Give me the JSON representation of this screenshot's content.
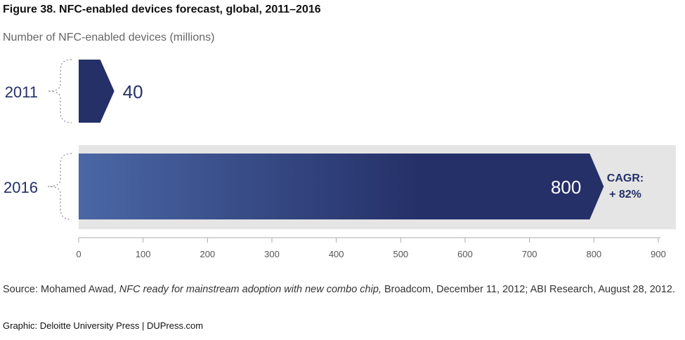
{
  "title": "Figure 38. NFC-enabled devices forecast, global, 2011–2016",
  "subtitle": "Number of NFC-enabled devices (millions)",
  "chart_data": {
    "type": "bar",
    "orientation": "horizontal",
    "categories": [
      "2011",
      "2016"
    ],
    "values": [
      40,
      800
    ],
    "value_labels": [
      "40",
      "800"
    ],
    "xlim": [
      0,
      900
    ],
    "x_ticks": [
      "0",
      "100",
      "200",
      "300",
      "400",
      "500",
      "600",
      "700",
      "800",
      "900"
    ],
    "annotation": {
      "line1": "CAGR:",
      "line2": "+ 82%"
    },
    "grid": false,
    "bar_color": "#253068",
    "bar_gradient_start": "#4a67a5",
    "highlight_band_color": "#e5e5e5"
  },
  "source": {
    "prefix": "Source: Mohamed Awad, ",
    "title": "NFC ready for mainstream adoption with new combo chip,",
    "suffix": " Broadcom, December 11, 2012; ABI Research, August 28, 2012."
  },
  "credit": "Graphic: Deloitte University Press  |  DUPress.com"
}
